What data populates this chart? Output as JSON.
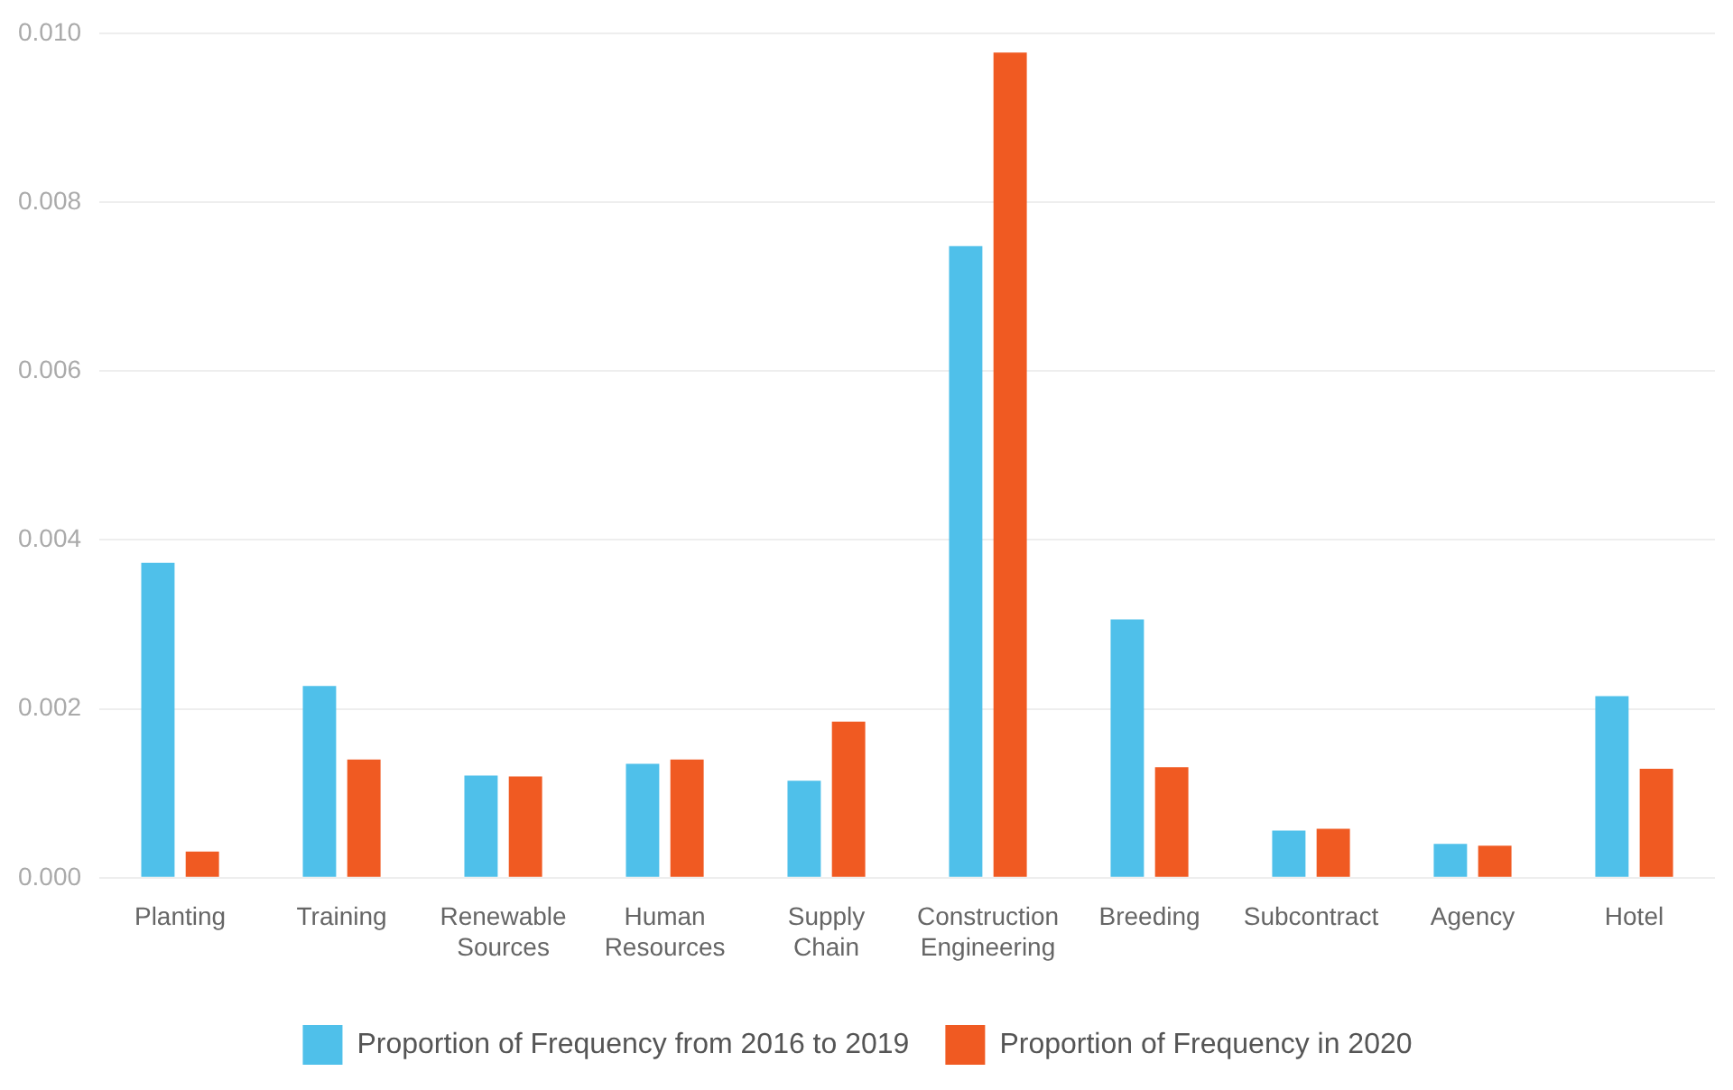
{
  "chart_data": {
    "type": "bar",
    "categories": [
      "Planting",
      "Training",
      "Renewable Sources",
      "Human Resources",
      "Supply Chain",
      "Construction Engineering",
      "Breeding",
      "Subcontract",
      "Agency",
      "Hotel"
    ],
    "series": [
      {
        "name": "Proportion of Frequency from 2016 to 2019",
        "color": "#4fc0ea",
        "values": [
          0.00373,
          0.00227,
          0.00121,
          0.00135,
          0.00115,
          0.00748,
          0.00306,
          0.00056,
          0.0004,
          0.00215
        ]
      },
      {
        "name": "Proportion of Frequency in 2020",
        "color": "#f05a22",
        "values": [
          0.00031,
          0.0014,
          0.0012,
          0.0014,
          0.00185,
          0.00977,
          0.00131,
          0.00058,
          0.00038,
          0.00129
        ]
      }
    ],
    "ylim": [
      0,
      0.01
    ],
    "yticks": [
      {
        "value": 0,
        "label": "0.000"
      },
      {
        "value": 0.002,
        "label": "0.002"
      },
      {
        "value": 0.004,
        "label": "0.004"
      },
      {
        "value": 0.006,
        "label": "0.006"
      },
      {
        "value": 0.008,
        "label": "0.008"
      },
      {
        "value": 0.01,
        "label": "0.010"
      }
    ],
    "grid": "y",
    "legend": "bottom"
  }
}
